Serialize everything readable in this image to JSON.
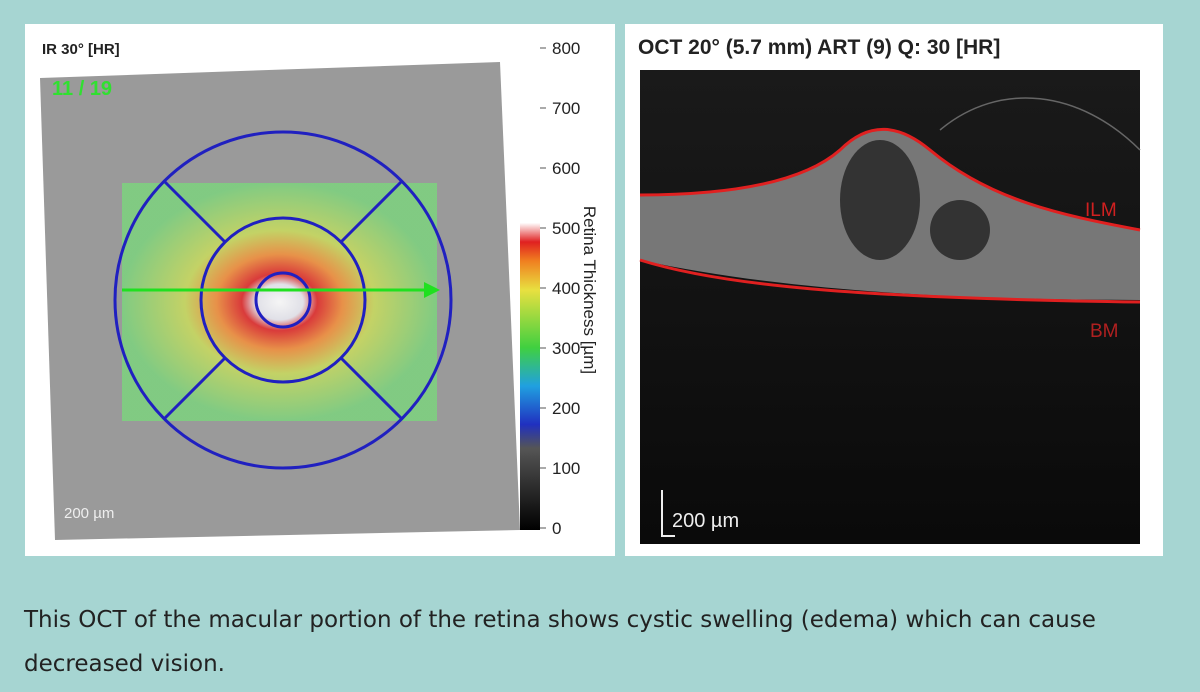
{
  "left_panel": {
    "title": "IR 30° [HR]",
    "frame": "11 / 19",
    "scale_bar": "200 µm",
    "colorbar": {
      "label": "Retina Thickness [µm]",
      "ticks": [
        800,
        700,
        600,
        500,
        400,
        300,
        200,
        100,
        0
      ]
    }
  },
  "right_panel": {
    "title": "OCT 20° (5.7 mm) ART (9) Q: 30 [HR]",
    "ilm_label": "ILM",
    "bm_label": "BM",
    "scale_bar": "200 µm"
  },
  "caption": "This OCT of the macular portion of the retina shows cystic swelling (edema) which can cause decreased vision."
}
